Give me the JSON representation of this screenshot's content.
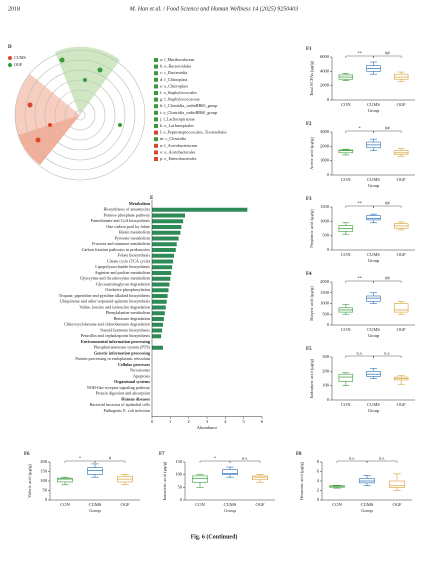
{
  "header": {
    "page": "2018",
    "journal": "M. Han et al. / Food Science and Human Wellness 14 (2025) 9250403"
  },
  "cladogram": {
    "label": "D",
    "groups": [
      {
        "name": "CUMS",
        "color": "#d9472b"
      },
      {
        "name": "OGF",
        "color": "#3a9a3a"
      }
    ],
    "taxa": [
      {
        "label": "a: f_Muribaculaceae",
        "color": "#3a9a3a"
      },
      {
        "label": "b: o_Bacteroidales",
        "color": "#3a9a3a"
      },
      {
        "label": "c: c_Bacteroidia",
        "color": "#3a9a3a"
      },
      {
        "label": "d: f_Chloroplast",
        "color": "#3a9a3a"
      },
      {
        "label": "e: o_Chloroplast",
        "color": "#3a9a3a"
      },
      {
        "label": "f: o_Staphylococcales",
        "color": "#3a9a3a"
      },
      {
        "label": "g: f_Staphylococcaceae",
        "color": "#3a9a3a"
      },
      {
        "label": "h: f_Clostridia_vadinBB60_group",
        "color": "#3a9a3a"
      },
      {
        "label": "i: o_Clostridia_vadinBB60_group",
        "color": "#3a9a3a"
      },
      {
        "label": "j: f_Lachnospiraceae",
        "color": "#3a9a3a"
      },
      {
        "label": "k: o_Lachnospirales",
        "color": "#3a9a3a"
      },
      {
        "label": "l: o_Peptostreptococcales_Tissierellales",
        "color": "#d9472b"
      },
      {
        "label": "m: c_Clostridia",
        "color": "#3a9a3a"
      },
      {
        "label": "n: f_Acetobacteraceae",
        "color": "#d9472b"
      },
      {
        "label": "o: o_Acetobacterales",
        "color": "#d9472b"
      },
      {
        "label": "p: o_Enterobacterales",
        "color": "#d9472b"
      }
    ]
  },
  "chart_data": [
    {
      "type": "bar",
      "orientation": "horizontal",
      "label": "E",
      "xlabel": "Abundance",
      "color": "#2e8b57",
      "xlim": [
        0,
        6
      ],
      "xticks": [
        0,
        1,
        2,
        3,
        4,
        5,
        6
      ],
      "groups": [
        {
          "name": "Metabolism",
          "color": "#2e8b57",
          "categories": [
            "Biosynthesis of ansamycins",
            "Pentose phosphate pathway",
            "Pantothenate and CoA biosynthesis",
            "One carbon pool by folate",
            "Biotin metabolism",
            "Pyruvate metabolism",
            "Fructose and mannose metabolism",
            "Carbon fixation pathways in prokaryotes",
            "Folate biosynthesis",
            "Citrate cycle (TCA cycle)",
            "Lipopolysaccharide biosynthesis",
            "Arginine and proline metabolism",
            "Glyoxylate and dicarboxylate metabolism",
            "Glycosaminoglycan degradation",
            "Oxidative phosphorylation",
            "Tropane, piperidine and pyridine alkaloid biosynthesis",
            "Ubiquinone and other terpenoid-quinone biosynthesis",
            "Valine, leucine and isoleucine degradation",
            "Phenylalanine metabolism",
            "Benzoate degradation",
            "Chlorocyclohexane and chlorobenzene degradation",
            "Steroid hormone biosynthesis",
            "Penicillin and cephalosporin biosynthesis"
          ],
          "values": [
            5.2,
            1.8,
            1.7,
            1.6,
            1.55,
            1.45,
            1.35,
            1.3,
            1.2,
            1.15,
            1.1,
            1.05,
            1.0,
            0.95,
            0.9,
            0.85,
            0.8,
            0.75,
            0.7,
            0.65,
            0.6,
            0.55,
            0.5
          ]
        },
        {
          "name": "Environmental information processing",
          "color": "#1e7fa0",
          "categories": [
            "Phosphotransferase system (PTS)"
          ],
          "values": [
            0.6
          ]
        },
        {
          "name": "Genetic information processing",
          "color": "#e08a1e",
          "categories": [
            "Protein processing in endoplasmic reticulum"
          ],
          "values": [
            null
          ]
        },
        {
          "name": "Cellular processes",
          "color": "#c8302a",
          "categories": [
            "Peroxisome",
            "Apoptosis"
          ],
          "values": [
            null,
            null
          ]
        },
        {
          "name": "Organismal systems",
          "color": "#2a8fc8",
          "categories": [
            "NOD-like receptor signaling pathway",
            "Protein digestion and absorption"
          ],
          "values": [
            null,
            null
          ]
        },
        {
          "name": "Human diseases",
          "color": "#7a2a9a",
          "categories": [
            "Bacterial invasion of epithelial cells",
            "Pathogenic E. coli infection"
          ],
          "values": [
            null,
            null
          ]
        }
      ]
    },
    {
      "type": "box",
      "title": "F1",
      "ylabel": "Total SCFAs (μg/g)",
      "xlabel": "Group",
      "categories": [
        "CON",
        "CUMS",
        "OGF"
      ],
      "colors": [
        "#3a9a3a",
        "#2a6fb5",
        "#d9a030"
      ],
      "values": [
        [
          2700,
          2900,
          3200,
          3500,
          3700
        ],
        [
          3600,
          4000,
          4400,
          4800,
          5300
        ],
        [
          2600,
          2900,
          3200,
          3600,
          3900
        ]
      ],
      "ylim": [
        0,
        6000
      ],
      "yticks": [
        0,
        2000,
        4000,
        6000
      ],
      "significance": [
        "**",
        "##"
      ]
    },
    {
      "type": "box",
      "title": "F2",
      "ylabel": "Acetic acid (μg/g)",
      "xlabel": "Group",
      "categories": [
        "CON",
        "CUMS",
        "OGF"
      ],
      "colors": [
        "#3a9a3a",
        "#2a6fb5",
        "#d9a030"
      ],
      "values": [
        [
          1400,
          1550,
          1700,
          1750,
          1800
        ],
        [
          1700,
          1900,
          2100,
          2300,
          2500
        ],
        [
          1300,
          1450,
          1550,
          1700,
          1850
        ]
      ],
      "ylim": [
        0,
        3000
      ],
      "yticks": [
        0,
        1000,
        2000,
        3000
      ],
      "significance": [
        "*",
        "##"
      ]
    },
    {
      "type": "box",
      "title": "F3",
      "ylabel": "Propionic acid (μg/g)",
      "xlabel": "Group",
      "categories": [
        "CON",
        "CUMS",
        "OGF"
      ],
      "colors": [
        "#3a9a3a",
        "#2a6fb5",
        "#d9a030"
      ],
      "values": [
        [
          550,
          650,
          750,
          850,
          950
        ],
        [
          950,
          1050,
          1100,
          1200,
          1250
        ],
        [
          700,
          760,
          840,
          920,
          980
        ]
      ],
      "ylim": [
        0,
        1500
      ],
      "yticks": [
        0,
        500,
        1000,
        1500
      ],
      "significance": [
        "**",
        "##"
      ]
    },
    {
      "type": "box",
      "title": "F4",
      "ylabel": "Butyric acid (μg/g)",
      "xlabel": "Group",
      "categories": [
        "CON",
        "CUMS",
        "OGF"
      ],
      "colors": [
        "#3a9a3a",
        "#2a6fb5",
        "#d9a030"
      ],
      "values": [
        [
          500,
          600,
          700,
          800,
          950
        ],
        [
          1000,
          1100,
          1250,
          1350,
          1500
        ],
        [
          500,
          600,
          700,
          1000,
          1100
        ]
      ],
      "ylim": [
        0,
        2000
      ],
      "yticks": [
        0,
        500,
        1000,
        1500,
        2000
      ],
      "significance": [
        "**",
        "##"
      ]
    },
    {
      "type": "box",
      "title": "F5",
      "ylabel": "Isobutyric acid (μg/g)",
      "xlabel": "Group",
      "categories": [
        "CON",
        "CUMS",
        "OGF"
      ],
      "colors": [
        "#3a9a3a",
        "#2a6fb5",
        "#d9a030"
      ],
      "values": [
        [
          100,
          130,
          160,
          180,
          190
        ],
        [
          150,
          165,
          180,
          200,
          220
        ],
        [
          110,
          140,
          150,
          160,
          170
        ]
      ],
      "ylim": [
        0,
        300
      ],
      "yticks": [
        0,
        100,
        200,
        300
      ],
      "significance": [
        "n.s.",
        "n.s."
      ]
    },
    {
      "type": "box",
      "title": "F6",
      "ylabel": "Valeric acid (μg/g)",
      "xlabel": "Group",
      "categories": [
        "CON",
        "CUMS",
        "OGF"
      ],
      "colors": [
        "#3a9a3a",
        "#2a6fb5",
        "#d9a030"
      ],
      "values": [
        [
          80,
          95,
          110,
          115,
          120
        ],
        [
          120,
          135,
          155,
          170,
          190
        ],
        [
          80,
          95,
          110,
          125,
          135
        ]
      ],
      "ylim": [
        0,
        200
      ],
      "yticks": [
        0,
        50,
        100,
        150,
        200
      ],
      "significance": [
        "*",
        "#"
      ]
    },
    {
      "type": "box",
      "title": "F7",
      "ylabel": "Isovaleric acid (μg/g)",
      "xlabel": "Group",
      "categories": [
        "CON",
        "CUMS",
        "OGF"
      ],
      "colors": [
        "#3a9a3a",
        "#2a6fb5",
        "#d9a030"
      ],
      "values": [
        [
          50,
          70,
          85,
          95,
          100
        ],
        [
          90,
          100,
          105,
          120,
          130
        ],
        [
          70,
          80,
          90,
          95,
          100
        ]
      ],
      "ylim": [
        0,
        150
      ],
      "yticks": [
        0,
        50,
        100,
        150
      ],
      "significance": [
        "*",
        "n.s."
      ]
    },
    {
      "type": "box",
      "title": "F8",
      "ylabel": "Hexanoic acid (μg/g)",
      "xlabel": "Group",
      "categories": [
        "CON",
        "CUMS",
        "OGF"
      ],
      "colors": [
        "#3a9a3a",
        "#2a6fb5",
        "#d9a030"
      ],
      "values": [
        [
          2.5,
          2.7,
          2.9,
          3.0,
          3.1
        ],
        [
          3,
          3.6,
          4,
          4.5,
          5.2
        ],
        [
          2,
          2.6,
          3,
          4,
          5.5
        ]
      ],
      "ylim": [
        0,
        8
      ],
      "yticks": [
        0,
        2,
        4,
        6,
        8
      ],
      "significance": [
        "n.s.",
        "n.s."
      ]
    }
  ],
  "caption": "Fig. 6 (Continued)"
}
